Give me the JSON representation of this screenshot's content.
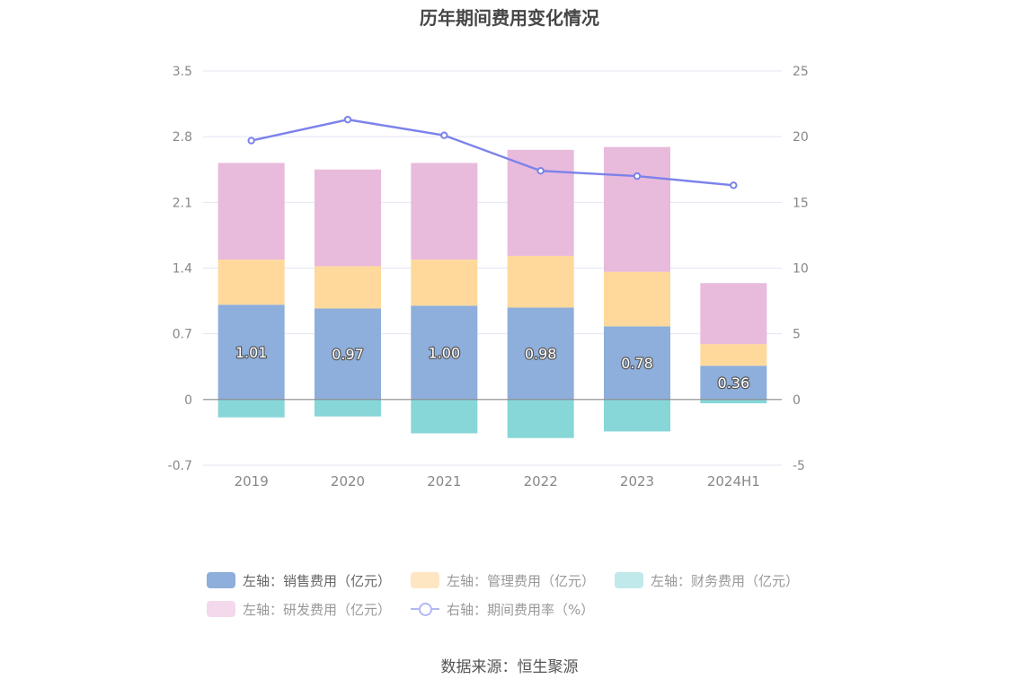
{
  "chart_data": {
    "type": "bar",
    "title": "历年期间费用变化情况",
    "categories": [
      "2019",
      "2020",
      "2021",
      "2022",
      "2023",
      "2024H1"
    ],
    "stacked": true,
    "left_axis": {
      "ylim": [
        -0.7,
        3.5
      ],
      "ticks": [
        "3.5",
        "2.8",
        "2.1",
        "1.4",
        "0.7",
        "0",
        "-0.7"
      ]
    },
    "right_axis": {
      "ylim": [
        -5,
        25
      ],
      "ticks": [
        "25",
        "20",
        "15",
        "10",
        "5",
        "0",
        "-5"
      ]
    },
    "series": [
      {
        "name": "左轴：销售费用（亿元）",
        "axis": "left",
        "color": "#8eaedb",
        "values": [
          1.01,
          0.97,
          1.0,
          0.98,
          0.78,
          0.36
        ],
        "labels": [
          "1.01",
          "0.97",
          "1.00",
          "0.98",
          "0.78",
          "0.36"
        ]
      },
      {
        "name": "左轴：管理费用（亿元）",
        "axis": "left",
        "color": "#ffd99b",
        "values": [
          0.48,
          0.45,
          0.49,
          0.55,
          0.58,
          0.23
        ]
      },
      {
        "name": "左轴：财务费用（亿元）",
        "axis": "left",
        "color": "#87d6d8",
        "values": [
          -0.19,
          -0.18,
          -0.36,
          -0.41,
          -0.34,
          -0.04
        ]
      },
      {
        "name": "左轴：研发费用（亿元）",
        "axis": "left",
        "color": "#e8badb",
        "values": [
          1.03,
          1.03,
          1.03,
          1.13,
          1.33,
          0.65
        ]
      },
      {
        "name": "右轴：期间费用率（%）",
        "axis": "right",
        "type": "line",
        "color": "#7b82ea",
        "values": [
          19.7,
          21.3,
          20.1,
          17.4,
          17.0,
          16.3
        ]
      }
    ],
    "grid": true,
    "legend": "bottom"
  },
  "source": "数据来源：恒生聚源"
}
